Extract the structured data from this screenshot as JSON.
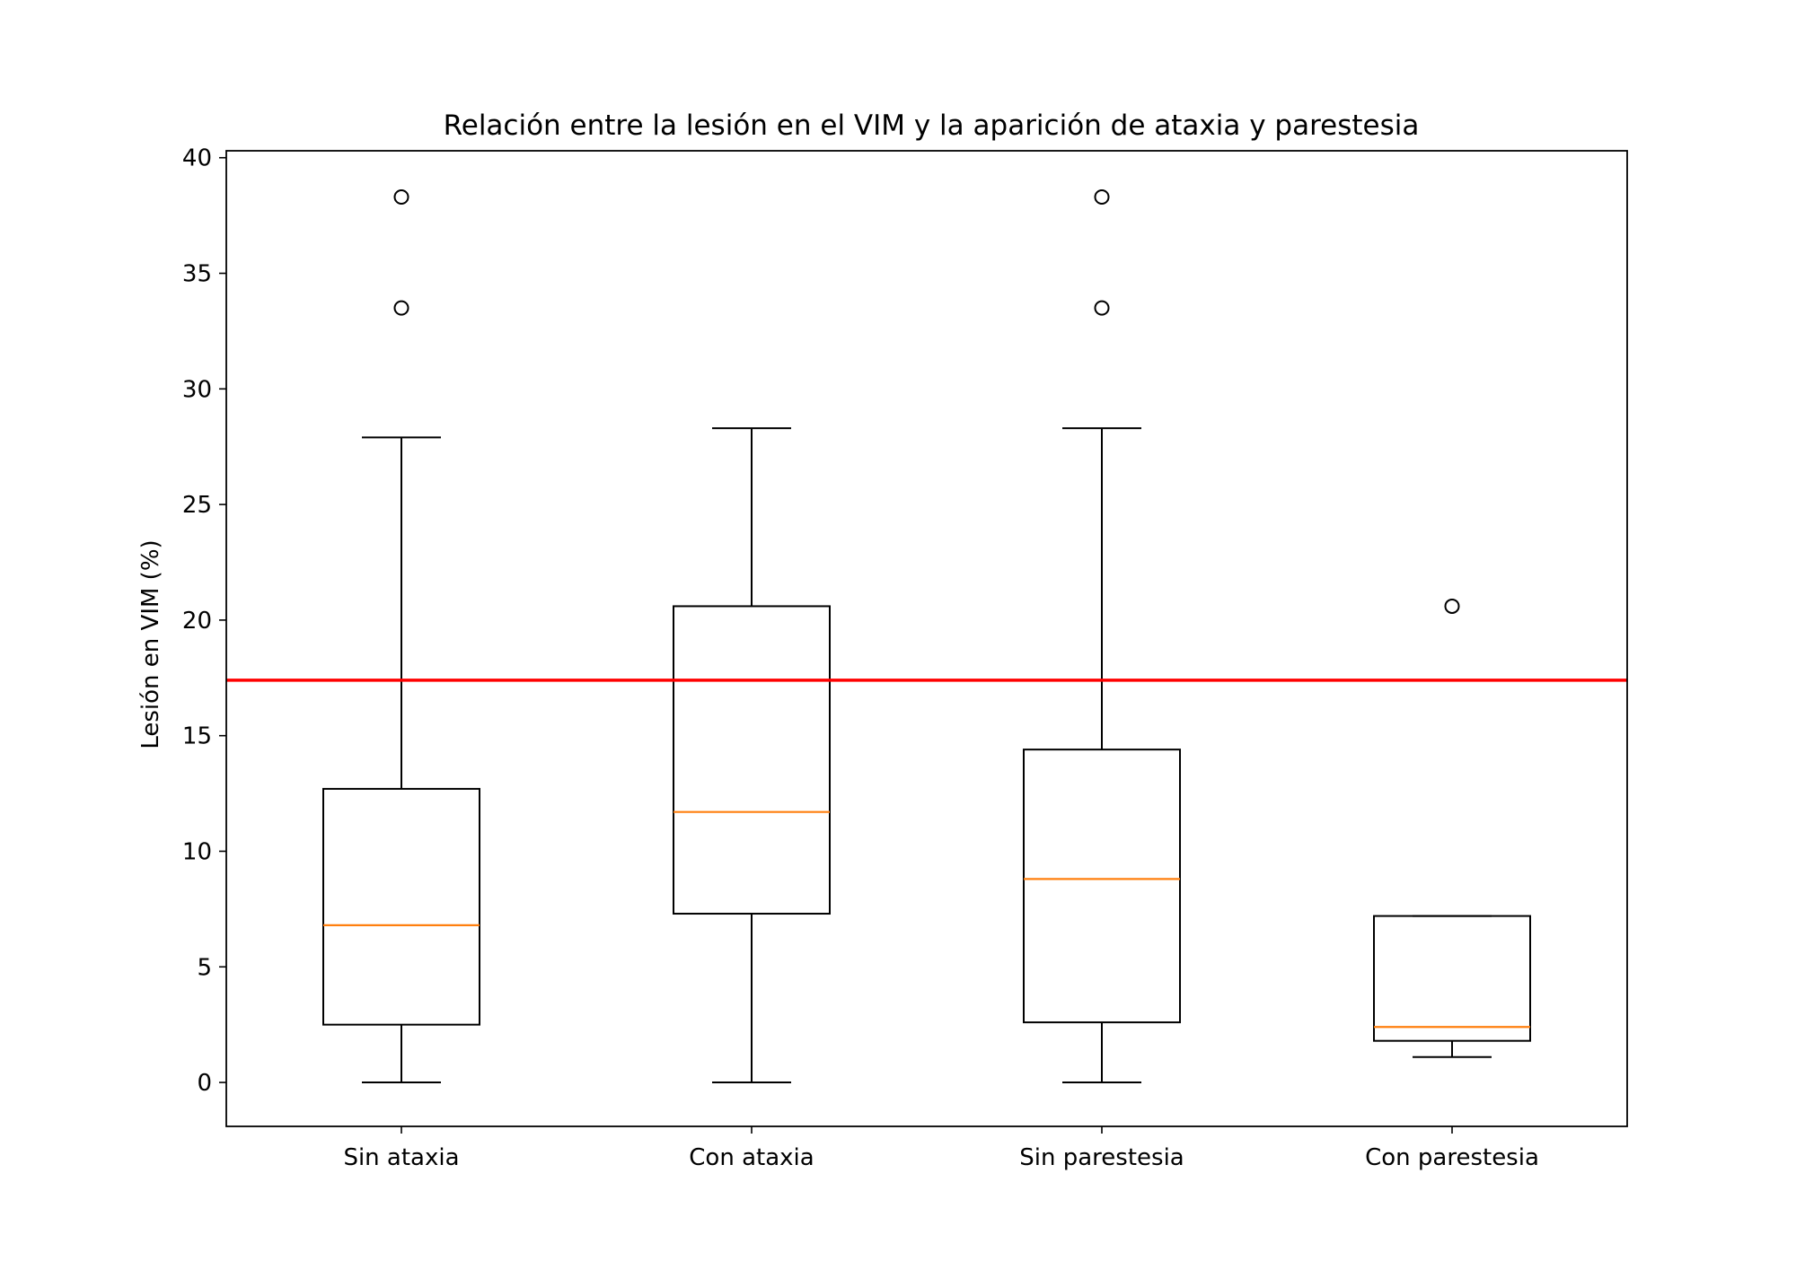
{
  "chart_data": {
    "type": "box",
    "title": "Relación entre la lesión en el VIM y la aparición de ataxia y parestesia",
    "xlabel": "",
    "ylabel": "Lesión en VIM (%)",
    "ylim": [
      -1.9,
      40.3
    ],
    "yticks": [
      0,
      5,
      10,
      15,
      20,
      25,
      30,
      35,
      40
    ],
    "grid": false,
    "reference_line": {
      "y": 17.4,
      "color": "#ff0000"
    },
    "median_color": "#ff7f0e",
    "groups": [
      {
        "label": "Sin ataxia",
        "whisker_low": 0,
        "q1": 2.5,
        "median": 6.8,
        "q3": 12.7,
        "whisker_high": 27.9,
        "outliers": [
          33.5,
          38.3
        ]
      },
      {
        "label": "Con ataxia",
        "whisker_low": 0,
        "q1": 7.3,
        "median": 11.7,
        "q3": 20.6,
        "whisker_high": 28.3,
        "outliers": []
      },
      {
        "label": "Sin parestesia",
        "whisker_low": 0,
        "q1": 2.6,
        "median": 8.8,
        "q3": 14.4,
        "whisker_high": 28.3,
        "outliers": [
          33.5,
          38.3
        ]
      },
      {
        "label": "Con parestesia",
        "whisker_low": 1.1,
        "q1": 1.8,
        "median": 2.4,
        "q3": 7.2,
        "whisker_high": 7.2,
        "outliers": [
          20.6
        ]
      }
    ]
  }
}
